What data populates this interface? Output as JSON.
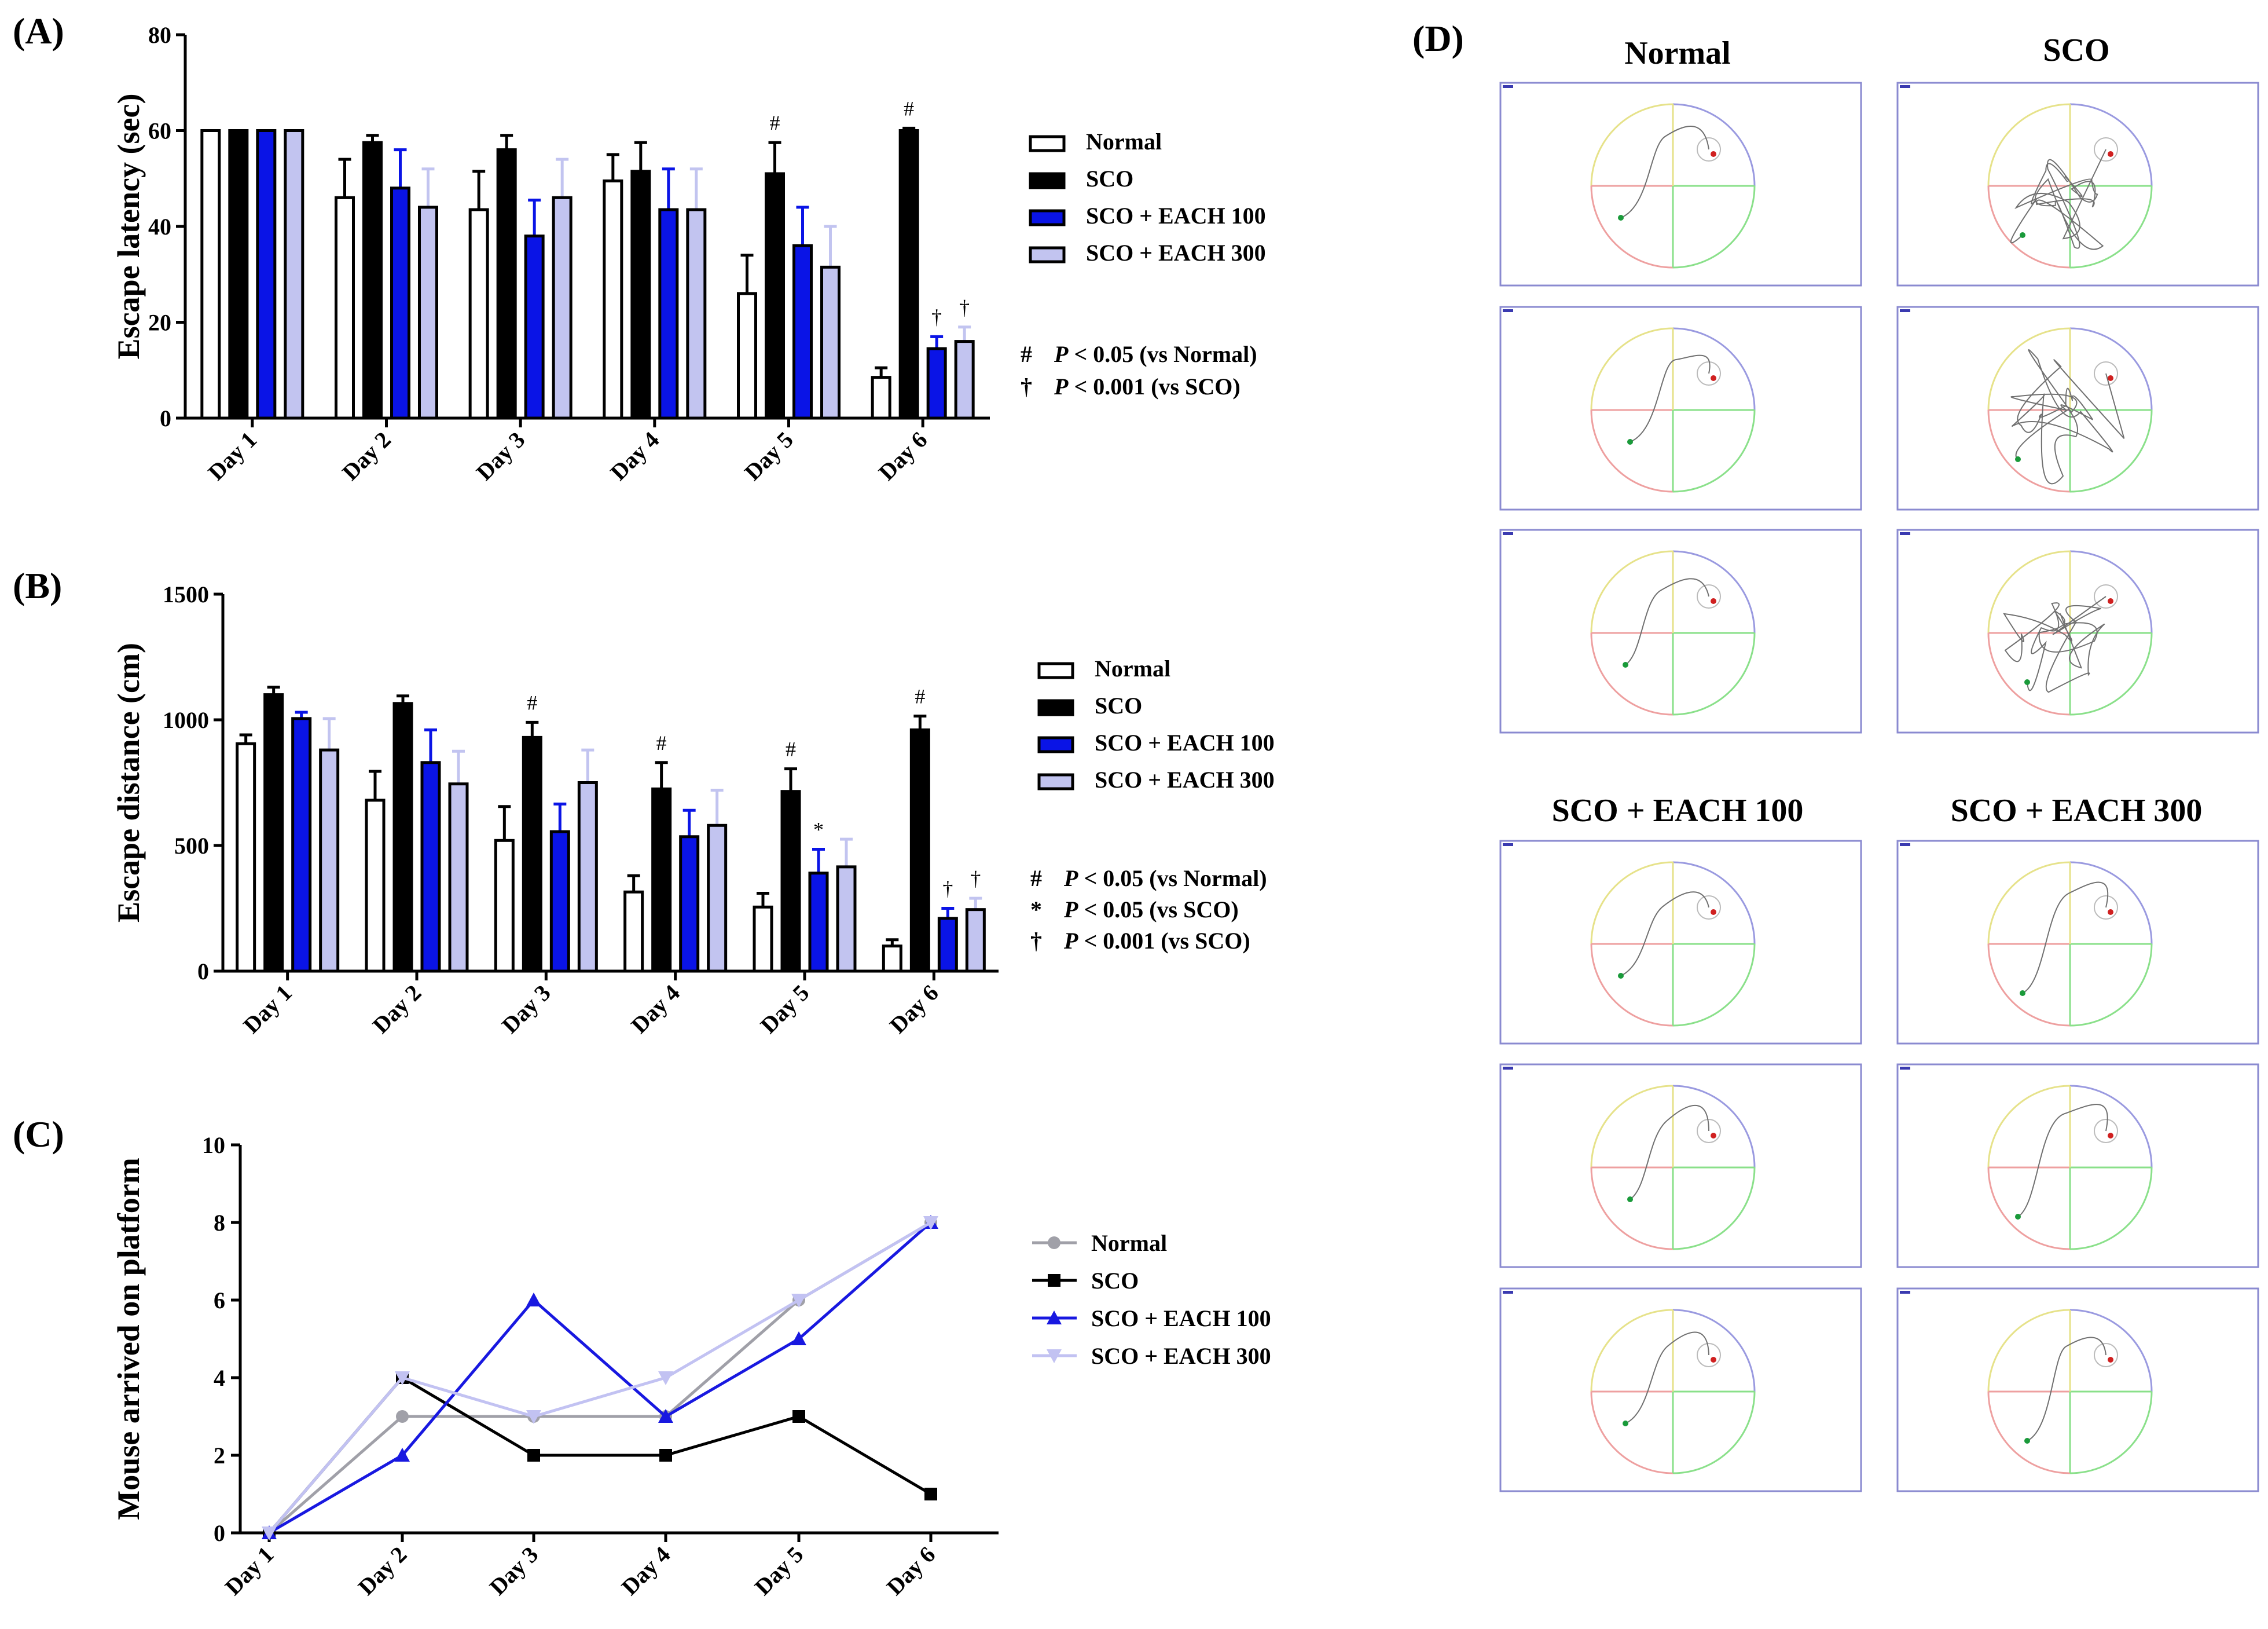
{
  "panel_labels": [
    "(A)",
    "(B)",
    "(C)",
    "(D)"
  ],
  "colors": {
    "Normal_bar": "#ffffff",
    "SCO_bar": "#000000",
    "EACH100_bar": "#0a14e6",
    "EACH300_bar": "#c2c4f0",
    "Normal_line": "#a0a0a8",
    "SCO_line": "#000000",
    "EACH100_line": "#1818e0",
    "EACH300_line": "#c2c2f2"
  },
  "chart_data": [
    {
      "id": "A",
      "type": "bar",
      "ylabel": "Escape latency (sec)",
      "ylim": [
        0,
        80
      ],
      "yticks": [
        0,
        20,
        40,
        60,
        80
      ],
      "categories": [
        "Day 1",
        "Day 2",
        "Day 3",
        "Day 4",
        "Day 5",
        "Day 6"
      ],
      "series": [
        {
          "name": "Normal",
          "values": [
            60,
            46,
            43.5,
            49.5,
            26,
            8.5
          ],
          "errors": [
            0,
            8,
            8,
            5.5,
            8,
            2
          ]
        },
        {
          "name": "SCO",
          "values": [
            60,
            57.5,
            56,
            51.5,
            51,
            60
          ],
          "errors": [
            0,
            1.5,
            3,
            6,
            6.5,
            0.5
          ]
        },
        {
          "name": "SCO + EACH 100",
          "values": [
            60,
            48,
            38,
            43.5,
            36,
            14.5
          ],
          "errors": [
            0,
            8,
            7.5,
            8.5,
            8,
            2.5
          ]
        },
        {
          "name": "SCO + EACH 300",
          "values": [
            60,
            44,
            46,
            43.5,
            31.5,
            16
          ],
          "errors": [
            0,
            8,
            8,
            8.5,
            8.5,
            3
          ]
        }
      ],
      "marks": [
        {
          "category": "Day 5",
          "series": "SCO",
          "symbol": "#"
        },
        {
          "category": "Day 6",
          "series": "SCO",
          "symbol": "#"
        },
        {
          "category": "Day 6",
          "series": "SCO + EACH 100",
          "symbol": "†"
        },
        {
          "category": "Day 6",
          "series": "SCO + EACH 300",
          "symbol": "†"
        }
      ],
      "legend": [
        "Normal",
        "SCO",
        "SCO + EACH 100",
        "SCO + EACH 300"
      ],
      "notes": [
        {
          "symbol": "#",
          "p": "P",
          "text": " < 0.05 (vs Normal)"
        },
        {
          "symbol": "†",
          "p": "P",
          "text": " < 0.001 (vs SCO)"
        }
      ]
    },
    {
      "id": "B",
      "type": "bar",
      "ylabel": "Escape distance (cm)",
      "ylim": [
        0,
        1500
      ],
      "yticks": [
        0,
        500,
        1000,
        1500
      ],
      "categories": [
        "Day 1",
        "Day 2",
        "Day 3",
        "Day 4",
        "Day 5",
        "Day 6"
      ],
      "series": [
        {
          "name": "Normal",
          "values": [
            905,
            680,
            520,
            315,
            255,
            100
          ],
          "errors": [
            35,
            115,
            135,
            65,
            55,
            25
          ]
        },
        {
          "name": "SCO",
          "values": [
            1100,
            1065,
            930,
            725,
            715,
            960
          ],
          "errors": [
            30,
            30,
            60,
            105,
            90,
            55
          ]
        },
        {
          "name": "SCO + EACH 100",
          "values": [
            1005,
            830,
            555,
            535,
            390,
            210
          ],
          "errors": [
            25,
            130,
            110,
            105,
            95,
            40
          ]
        },
        {
          "name": "SCO + EACH 300",
          "values": [
            880,
            745,
            750,
            580,
            415,
            245
          ],
          "errors": [
            125,
            130,
            130,
            140,
            110,
            45
          ]
        }
      ],
      "marks": [
        {
          "category": "Day 3",
          "series": "SCO",
          "symbol": "#"
        },
        {
          "category": "Day 4",
          "series": "SCO",
          "symbol": "#"
        },
        {
          "category": "Day 5",
          "series": "SCO",
          "symbol": "#"
        },
        {
          "category": "Day 5",
          "series": "SCO + EACH 100",
          "symbol": "*"
        },
        {
          "category": "Day 6",
          "series": "SCO",
          "symbol": "#"
        },
        {
          "category": "Day 6",
          "series": "SCO + EACH 100",
          "symbol": "†"
        },
        {
          "category": "Day 6",
          "series": "SCO + EACH 300",
          "symbol": "†"
        }
      ],
      "legend": [
        "Normal",
        "SCO",
        "SCO + EACH 100",
        "SCO + EACH 300"
      ],
      "notes": [
        {
          "symbol": "#",
          "p": "P",
          "text": " < 0.05 (vs Normal)"
        },
        {
          "symbol": "*",
          "p": "P",
          "text": " < 0.05 (vs SCO)"
        },
        {
          "symbol": "†",
          "p": "P",
          "text": " < 0.001 (vs SCO)"
        }
      ]
    },
    {
      "id": "C",
      "type": "line",
      "ylabel": "Mouse arrived on platform",
      "ylim": [
        0,
        10
      ],
      "yticks": [
        0,
        2,
        4,
        6,
        8,
        10
      ],
      "categories": [
        "Day 1",
        "Day 2",
        "Day 3",
        "Day 4",
        "Day 5",
        "Day 6"
      ],
      "series": [
        {
          "name": "Normal",
          "marker": "circle",
          "values": [
            0,
            3,
            3,
            3,
            6,
            8
          ]
        },
        {
          "name": "SCO",
          "marker": "square",
          "values": [
            0,
            4,
            2,
            2,
            3,
            1
          ]
        },
        {
          "name": "SCO + EACH 100",
          "marker": "triangle-up",
          "values": [
            0,
            2,
            6,
            3,
            5,
            8
          ]
        },
        {
          "name": "SCO + EACH 300",
          "marker": "triangle-down",
          "values": [
            0,
            4,
            3,
            4,
            6,
            8
          ]
        }
      ],
      "legend": [
        "Normal",
        "SCO",
        "SCO + EACH 100",
        "SCO + EACH 300"
      ]
    }
  ],
  "panel_d": {
    "groups": [
      "Normal",
      "SCO",
      "SCO + EACH 100",
      "SCO + EACH 300"
    ],
    "tracks_per_group": 3
  }
}
